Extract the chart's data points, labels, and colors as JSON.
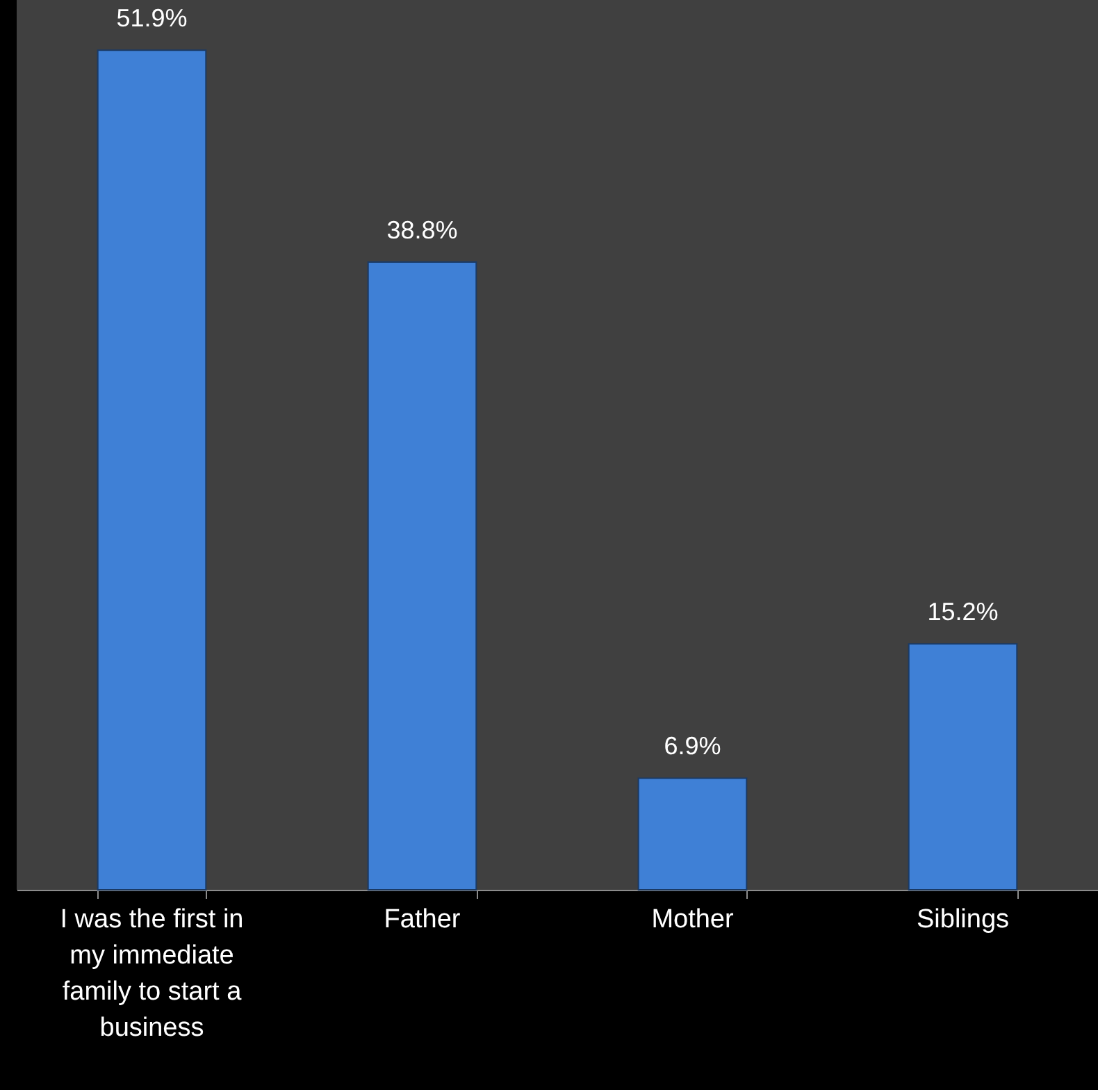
{
  "chart_data": {
    "type": "bar",
    "categories": [
      "I was the first in my immediate family to start a business",
      "Father",
      "Mother",
      "Siblings"
    ],
    "values": [
      51.9,
      38.8,
      6.9,
      15.2
    ],
    "value_labels": [
      "51.9%",
      "38.8%",
      "6.9%",
      "15.2%"
    ],
    "color": "#3f80d6",
    "grid": false
  }
}
